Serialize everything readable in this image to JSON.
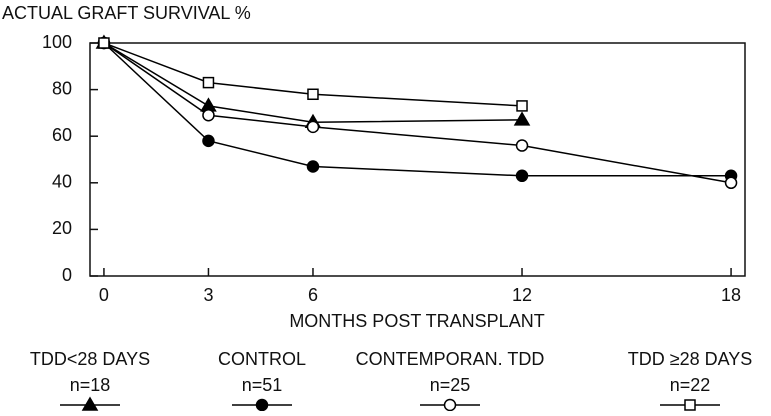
{
  "chart_data": {
    "type": "line",
    "title": "ACTUAL GRAFT SURVIVAL %",
    "x_label": "MONTHS POST TRANSPLANT",
    "x": [
      0,
      3,
      6,
      12,
      18
    ],
    "xlim": [
      -0.4,
      18.4
    ],
    "xticks": [
      0,
      3,
      6,
      12,
      18
    ],
    "ylim": [
      0,
      100
    ],
    "yticks": [
      0,
      20,
      40,
      60,
      80,
      100
    ],
    "series": [
      {
        "name": "TDD<28 DAYS",
        "n_label": "n=18",
        "color": "#000000",
        "marker": "triangle",
        "filled": true,
        "values": [
          100,
          73,
          66,
          67,
          null
        ]
      },
      {
        "name": "CONTROL",
        "n_label": "n=51",
        "color": "#000000",
        "marker": "circle",
        "filled": true,
        "values": [
          100,
          58,
          47,
          43,
          43
        ]
      },
      {
        "name": "CONTEMPORAN. TDD",
        "n_label": "n=25",
        "color": "#000000",
        "marker": "circle",
        "filled": false,
        "values": [
          100,
          69,
          64,
          56,
          40
        ]
      },
      {
        "name": "TDD ≥28 DAYS",
        "n_label": "n=22",
        "color": "#000000",
        "marker": "square",
        "filled": false,
        "values": [
          100,
          83,
          78,
          73,
          null
        ]
      }
    ]
  }
}
